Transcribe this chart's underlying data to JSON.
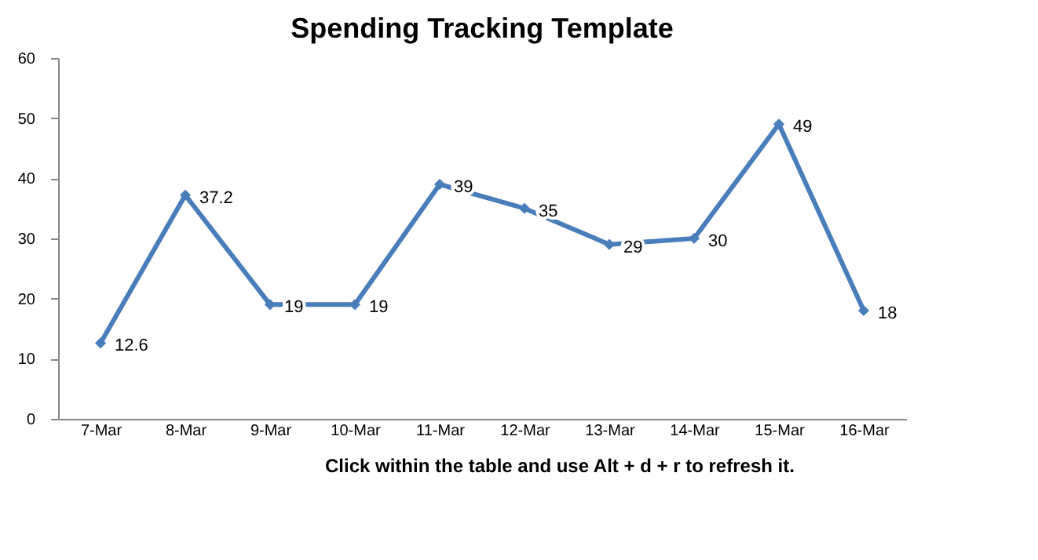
{
  "chart_data": {
    "type": "line",
    "title": "Spending Tracking Template",
    "categories": [
      "7-Mar",
      "8-Mar",
      "9-Mar",
      "10-Mar",
      "11-Mar",
      "12-Mar",
      "13-Mar",
      "14-Mar",
      "15-Mar",
      "16-Mar"
    ],
    "series": [
      {
        "color": "#4a7ebb",
        "values": [
          12.6,
          37.2,
          19,
          19,
          39,
          35,
          29,
          30,
          49,
          18
        ]
      }
    ],
    "ylim": [
      0,
      60
    ],
    "yticks": [
      0,
      10,
      20,
      30,
      40,
      50,
      60
    ],
    "grid": false,
    "marker": "diamond",
    "line_style": "solid",
    "data_labels": true,
    "annotations": [
      "Click within the table and use Alt + d + r to refresh it."
    ]
  }
}
